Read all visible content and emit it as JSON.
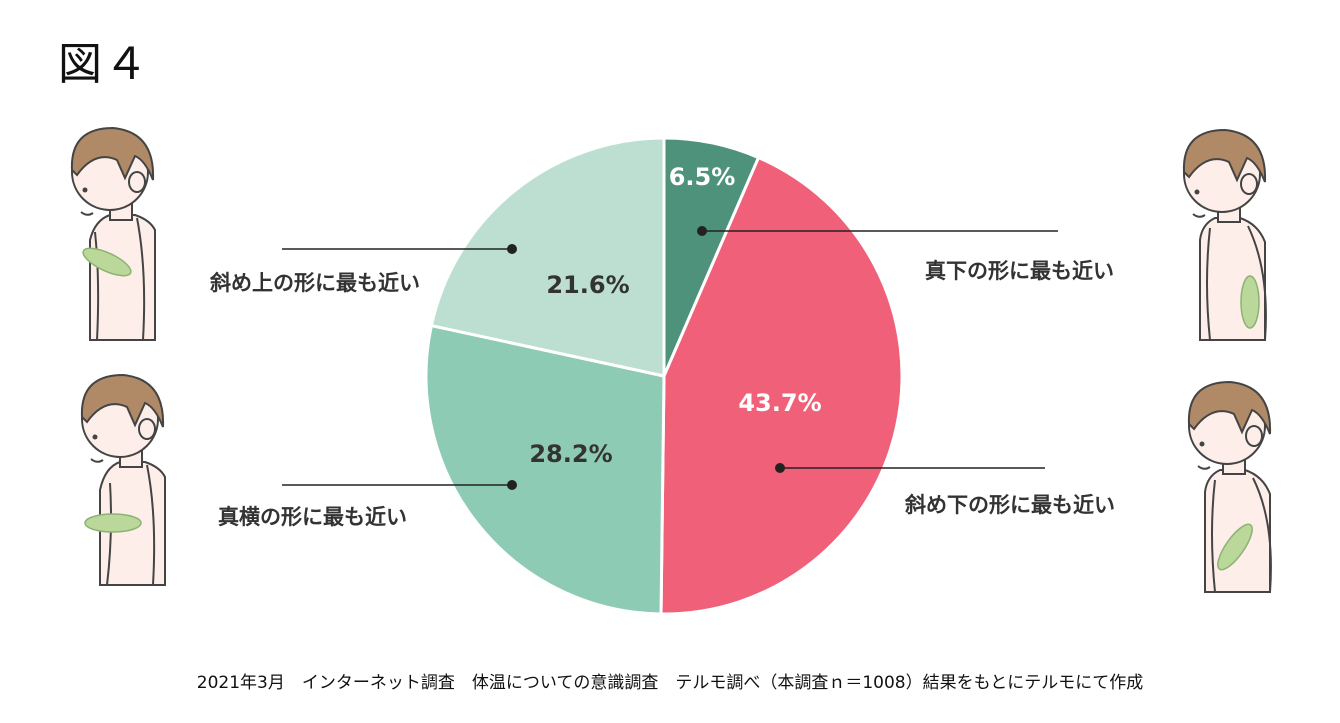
{
  "figure_label": "図４",
  "chart_data": {
    "type": "pie",
    "title": "",
    "slices": [
      {
        "label": "真下の形に最も近い",
        "value": 6.5,
        "value_label": "6.5%",
        "color": "#4f927c",
        "text_color": "#ffffff"
      },
      {
        "label": "斜め下の形に最も近い",
        "value": 43.7,
        "value_label": "43.7%",
        "color": "#f06079",
        "text_color": "#ffffff"
      },
      {
        "label": "真横の形に最も近い",
        "value": 28.2,
        "value_label": "28.2%",
        "color": "#8ecbb5",
        "text_color": "#333333"
      },
      {
        "label": "斜め上の形に最も近い",
        "value": 21.6,
        "value_label": "21.6%",
        "color": "#bcdfd2",
        "text_color": "#333333"
      }
    ]
  },
  "illustrations": [
    {
      "icon": "person-thermometer-upward-icon",
      "skin": "#fdeee9",
      "hair": "#b08a66",
      "thermo": "#b9d899"
    },
    {
      "icon": "person-thermometer-horizontal-icon",
      "skin": "#fdeee9",
      "hair": "#b08a66",
      "thermo": "#b9d899"
    },
    {
      "icon": "person-thermometer-straight-down-icon",
      "skin": "#fdeee9",
      "hair": "#b08a66",
      "thermo": "#b9d899"
    },
    {
      "icon": "person-thermometer-diagonal-down-icon",
      "skin": "#fdeee9",
      "hair": "#b08a66",
      "thermo": "#b9d899"
    }
  ],
  "footnote": "2021年3月　インターネット調査　体温についての意識調査　テルモ調べ（本調査ｎ＝1008）結果をもとにテルモにて作成"
}
